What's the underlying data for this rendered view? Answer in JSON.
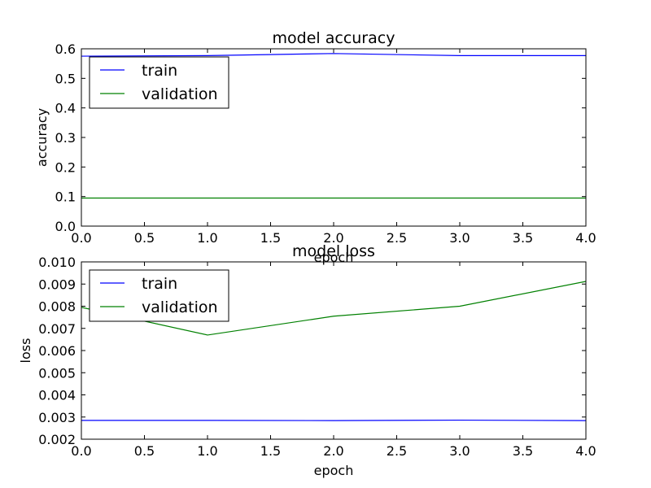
{
  "chart_data": [
    {
      "type": "line",
      "title": "model accuracy",
      "xlabel": "epoch",
      "ylabel": "accuracy",
      "x": [
        0,
        1,
        2,
        3,
        4
      ],
      "xlim": [
        0.0,
        4.0
      ],
      "ylim": [
        0.0,
        0.6
      ],
      "xticks": [
        "0.0",
        "0.5",
        "1.0",
        "1.5",
        "2.0",
        "2.5",
        "3.0",
        "3.5",
        "4.0"
      ],
      "yticks": [
        "0.0",
        "0.1",
        "0.2",
        "0.3",
        "0.4",
        "0.5",
        "0.6"
      ],
      "grid": false,
      "legend_position": "upper-left",
      "series": [
        {
          "name": "train",
          "color": "#0000ff",
          "values": [
            0.575,
            0.577,
            0.584,
            0.577,
            0.577
          ]
        },
        {
          "name": "validation",
          "color": "#008000",
          "values": [
            0.095,
            0.095,
            0.095,
            0.095,
            0.095
          ]
        }
      ]
    },
    {
      "type": "line",
      "title": "model loss",
      "xlabel": "epoch",
      "ylabel": "loss",
      "x": [
        0,
        1,
        2,
        3,
        4
      ],
      "xlim": [
        0.0,
        4.0
      ],
      "ylim": [
        0.002,
        0.01
      ],
      "xticks": [
        "0.0",
        "0.5",
        "1.0",
        "1.5",
        "2.0",
        "2.5",
        "3.0",
        "3.5",
        "4.0"
      ],
      "yticks": [
        "0.002",
        "0.003",
        "0.004",
        "0.005",
        "0.006",
        "0.007",
        "0.008",
        "0.009",
        "0.010"
      ],
      "grid": false,
      "legend_position": "upper-left",
      "series": [
        {
          "name": "train",
          "color": "#0000ff",
          "values": [
            0.00285,
            0.00285,
            0.00284,
            0.00286,
            0.00284
          ]
        },
        {
          "name": "validation",
          "color": "#008000",
          "values": [
            0.00795,
            0.0067,
            0.00755,
            0.008,
            0.00912
          ]
        }
      ]
    }
  ]
}
